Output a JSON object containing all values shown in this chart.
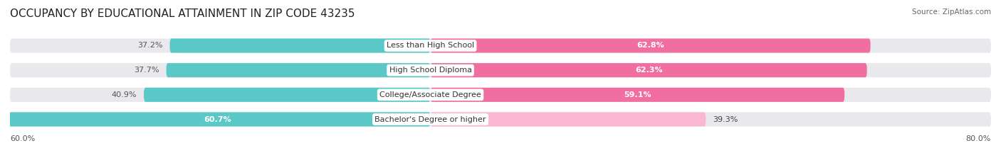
{
  "title": "OCCUPANCY BY EDUCATIONAL ATTAINMENT IN ZIP CODE 43235",
  "source": "Source: ZipAtlas.com",
  "categories": [
    "Less than High School",
    "High School Diploma",
    "College/Associate Degree",
    "Bachelor's Degree or higher"
  ],
  "owner_values": [
    37.2,
    37.7,
    40.9,
    60.7
  ],
  "renter_values": [
    62.8,
    62.3,
    59.1,
    39.3
  ],
  "owner_color": "#5BC8C8",
  "renter_colors_dark": "#F06EA0",
  "renter_colors_light": "#F9B8D0",
  "background_color": "#ffffff",
  "bar_bg_color": "#e8e8ed",
  "title_fontsize": 11,
  "source_fontsize": 7.5,
  "bar_label_fontsize": 8,
  "cat_label_fontsize": 8,
  "x_left_label": "60.0%",
  "x_right_label": "80.0%"
}
